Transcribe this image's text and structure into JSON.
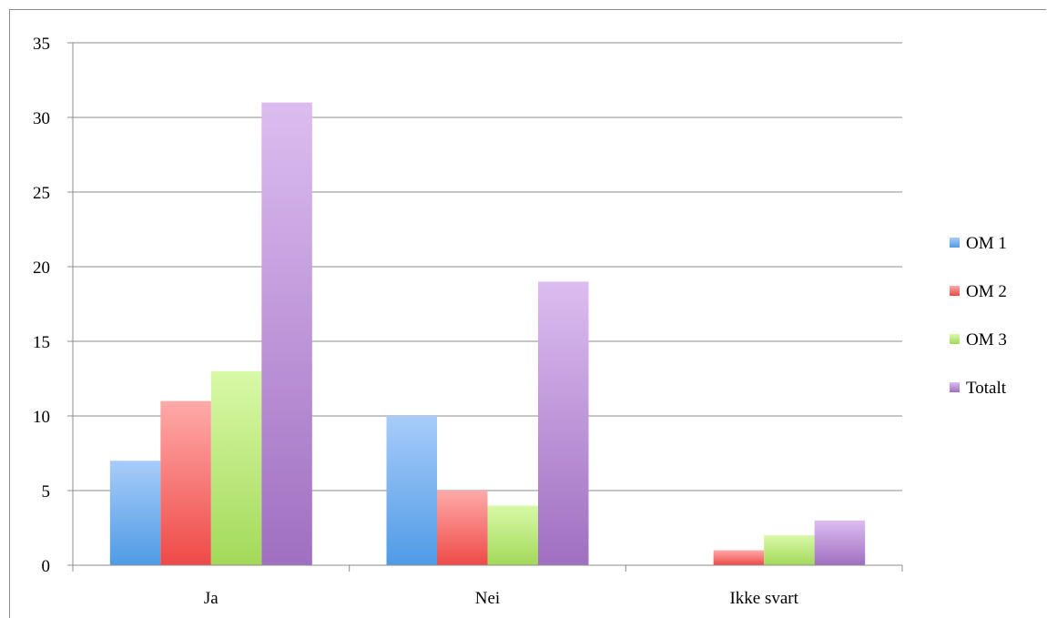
{
  "chart_data": {
    "type": "bar",
    "categories": [
      "Ja",
      "Nei",
      "Ikke svart"
    ],
    "series": [
      {
        "name": "OM 1",
        "values": [
          7,
          10,
          0
        ],
        "color": "#4f9be6",
        "color_light": "#a8ccf9"
      },
      {
        "name": "OM 2",
        "values": [
          11,
          5,
          1
        ],
        "color": "#ee4a47",
        "color_light": "#ffaaa9"
      },
      {
        "name": "OM 3",
        "values": [
          13,
          4,
          2
        ],
        "color": "#a3d95a",
        "color_light": "#d8f9a7"
      },
      {
        "name": "Totalt",
        "values": [
          31,
          19,
          3
        ],
        "color": "#a06fc1",
        "color_light": "#dcbdf0"
      }
    ],
    "ylim": [
      0,
      35
    ],
    "yticks": [
      "0",
      "5",
      "10",
      "15",
      "20",
      "25",
      "30",
      "35"
    ],
    "grid": true,
    "legend": "right"
  }
}
